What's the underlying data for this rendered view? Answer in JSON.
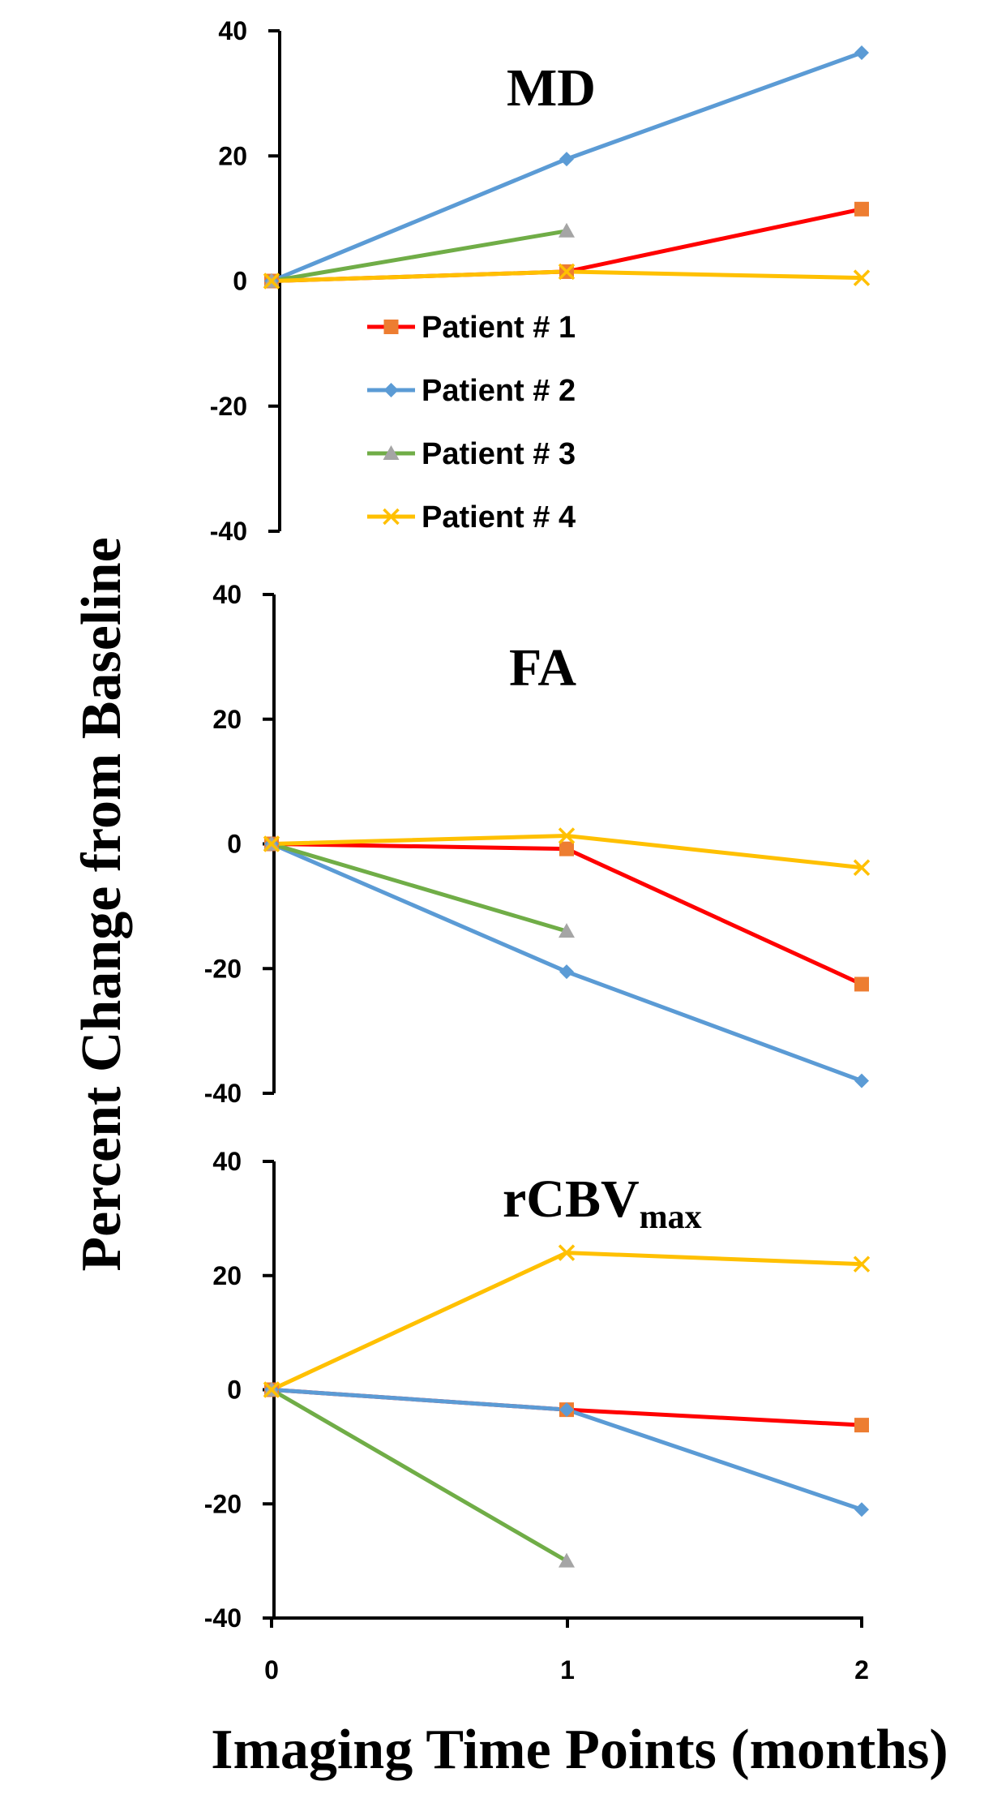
{
  "chart_data": {
    "type": "line",
    "xlabel": "Imaging Time Points (months)",
    "ylabel": "Percent Change from Baseline",
    "x_ticks": [
      "0",
      "1",
      "2"
    ],
    "xlim": [
      0,
      2
    ],
    "ylim": [
      -40,
      40
    ],
    "y_ticks": [
      "40",
      "20",
      "0",
      "-20",
      "-40"
    ],
    "legend": {
      "placement": "inside-top-panel-left",
      "entries": [
        "Patient # 1",
        "Patient # 2",
        "Patient # 3",
        "Patient # 4"
      ]
    },
    "series_styles": [
      {
        "name": "Patient # 1",
        "line_color": "#ff0000",
        "marker": "square",
        "marker_color": "#ed7d31"
      },
      {
        "name": "Patient # 2",
        "line_color": "#5b9bd5",
        "marker": "diamond",
        "marker_color": "#5b9bd5"
      },
      {
        "name": "Patient # 3",
        "line_color": "#70ad47",
        "marker": "triangle",
        "marker_color": "#a5a5a5"
      },
      {
        "name": "Patient # 4",
        "line_color": "#ffc000",
        "marker": "x",
        "marker_color": "#ffc000"
      }
    ],
    "panels": [
      {
        "id": "md",
        "title": "MD",
        "title_sub": "",
        "series": [
          {
            "name": "Patient # 1",
            "x": [
              0,
              1,
              2
            ],
            "values": [
              0,
              1.5,
              11.5
            ]
          },
          {
            "name": "Patient # 2",
            "x": [
              0,
              1,
              2
            ],
            "values": [
              0,
              19.5,
              36.5
            ]
          },
          {
            "name": "Patient # 3",
            "x": [
              0,
              1
            ],
            "values": [
              0,
              8
            ]
          },
          {
            "name": "Patient # 4",
            "x": [
              0,
              1,
              2
            ],
            "values": [
              0,
              1.5,
              0.5
            ]
          }
        ]
      },
      {
        "id": "fa",
        "title": "FA",
        "title_sub": "",
        "series": [
          {
            "name": "Patient # 1",
            "x": [
              0,
              1,
              2
            ],
            "values": [
              0,
              -0.8,
              -22.5
            ]
          },
          {
            "name": "Patient # 2",
            "x": [
              0,
              1,
              2
            ],
            "values": [
              0,
              -20.5,
              -38
            ]
          },
          {
            "name": "Patient # 3",
            "x": [
              0,
              1
            ],
            "values": [
              0,
              -14
            ]
          },
          {
            "name": "Patient # 4",
            "x": [
              0,
              1,
              2
            ],
            "values": [
              0,
              1.3,
              -3.8
            ]
          }
        ]
      },
      {
        "id": "rcbv",
        "title": "rCBV",
        "title_sub": "max",
        "series": [
          {
            "name": "Patient # 1",
            "x": [
              0,
              1,
              2
            ],
            "values": [
              0,
              -3.5,
              -6.2
            ]
          },
          {
            "name": "Patient # 2",
            "x": [
              0,
              1,
              2
            ],
            "values": [
              0,
              -3.5,
              -21
            ]
          },
          {
            "name": "Patient # 3",
            "x": [
              0,
              1
            ],
            "values": [
              0,
              -30
            ]
          },
          {
            "name": "Patient # 4",
            "x": [
              0,
              1,
              2
            ],
            "values": [
              0,
              24,
              22
            ]
          }
        ]
      }
    ]
  }
}
